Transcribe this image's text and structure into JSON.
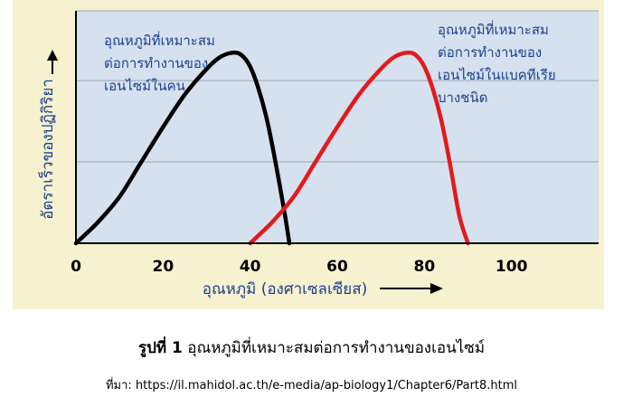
{
  "chart_data": {
    "type": "line",
    "xlabel": "อุณหภูมิ (องศาเซลเซียส)",
    "ylabel": "อัตราเร็วของปฏิกิริยา",
    "xlim": [
      0,
      120
    ],
    "ylim": [
      0,
      100
    ],
    "x_ticks": [
      "0",
      "20",
      "40",
      "60",
      "80",
      "100"
    ],
    "x_tick_values": [
      0,
      20,
      40,
      60,
      80,
      100
    ],
    "y_gridlines": [
      35,
      70,
      100
    ],
    "grid": "horizontal",
    "series": [
      {
        "name": "human",
        "color": "#000000",
        "x": [
          0,
          5,
          10,
          15,
          20,
          25,
          30,
          33,
          36,
          38,
          40,
          42,
          44,
          46,
          48,
          49
        ],
        "y": [
          0,
          9,
          20,
          35,
          50,
          64,
          75,
          80,
          82,
          81,
          76,
          66,
          52,
          33,
          12,
          0
        ]
      },
      {
        "name": "bacteria",
        "color": "#e31a1c",
        "x": [
          40,
          45,
          50,
          55,
          60,
          65,
          70,
          73,
          76,
          78,
          80,
          82,
          84,
          86,
          88,
          90
        ],
        "y": [
          0,
          9,
          20,
          35,
          50,
          64,
          75,
          80,
          82,
          81,
          76,
          66,
          52,
          33,
          12,
          0
        ]
      }
    ],
    "annotations": [
      {
        "lines": [
          "อุณหภูมิที่เหมาะสม",
          "ต่อการทำงานของ",
          "เอนไซม์ในคน"
        ]
      },
      {
        "lines": [
          "อุณหภูมิที่เหมาะสม",
          "ต่อการทำงานของ",
          "เอนไซม์ในแบคทีเรีย",
          "บางชนิด"
        ]
      }
    ]
  },
  "caption": {
    "label": "รูปที่ 1",
    "text": " อุณหภูมิที่เหมาะสมต่อการทำงานของเอนไซม์"
  },
  "source": "ที่มา: https://il.mahidol.ac.th/e-media/ap-biology1/Chapter6/Part8.html",
  "colors": {
    "background": "#f6f1cf",
    "plot_area": "#d5e1ef",
    "text_blue": "#1d3f8f",
    "gridline": "#9aa7b9",
    "axis": "#000000"
  }
}
